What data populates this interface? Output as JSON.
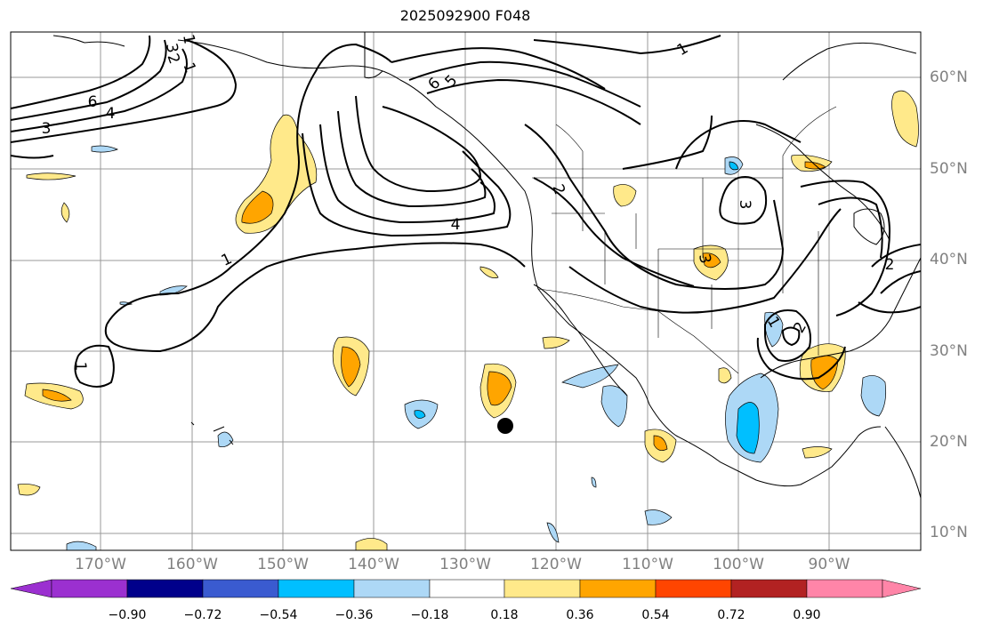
{
  "title": "2025092900 F048",
  "longitude_labels": [
    "170°W",
    "160°W",
    "150°W",
    "140°W",
    "130°W",
    "120°W",
    "110°W",
    "100°W",
    "90°W"
  ],
  "latitude_labels": [
    "60°N",
    "50°N",
    "40°N",
    "30°N",
    "20°N",
    "10°N"
  ],
  "contour_labels": [
    "1",
    "2",
    "1",
    "6",
    "4",
    "3",
    "6",
    "5",
    "2",
    "4",
    "1",
    "1",
    "1",
    "3",
    "3",
    "3",
    "2",
    "1",
    "2"
  ],
  "colorbar": {
    "ticks": [
      "−0.90",
      "−0.72",
      "−0.54",
      "−0.36",
      "−0.18",
      "0.18",
      "0.36",
      "0.54",
      "0.72",
      "0.90"
    ],
    "colors": [
      "#9b30d0",
      "#00008b",
      "#3a5bd0",
      "#00bfff",
      "#add8f6",
      "#ffffff",
      "#ffe98a",
      "#ffa500",
      "#ff4500",
      "#b22222",
      "#ff85a8"
    ]
  },
  "marker": "storm-center"
}
